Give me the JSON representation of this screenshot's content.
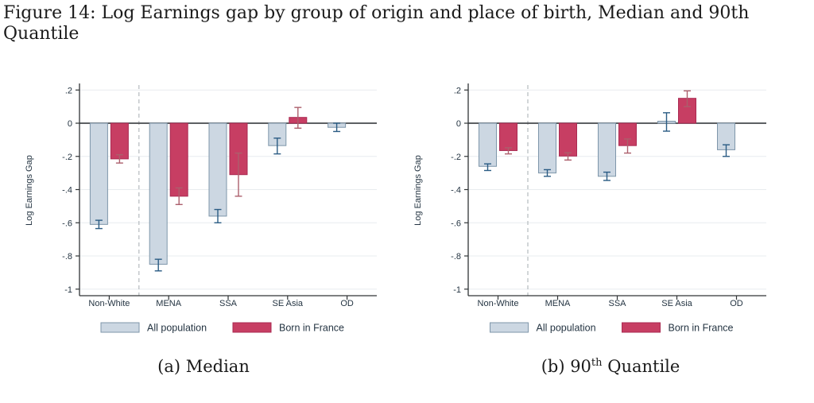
{
  "title": "Figure 14: Log Earnings gap by group of origin and place of birth, Median and 90th Quantile",
  "colors": {
    "background": "#ffffff",
    "grid": "#e8ecef",
    "dashed_separator": "#b5babe",
    "zero_line": "#46494d",
    "axis": "#303436",
    "chart_text": "#243442",
    "title_text": "#1b1b1b",
    "all_population_fill": "#ccd7e2",
    "all_population_stroke": "#7e96aa",
    "all_population_error": "#2b5c84",
    "born_in_france_fill": "#c73e63",
    "born_in_france_stroke": "#aa2a52",
    "born_in_france_error": "#ac5f6c"
  },
  "chart_data": [
    {
      "type": "bar",
      "title": "(a) Median",
      "caption": {
        "prefix": "(a) Median",
        "sup": "",
        "suffix": ""
      },
      "ylabel": "Log Earnings Gap",
      "xlabel": "",
      "ylim": [
        -1.05,
        0.25
      ],
      "grid": true,
      "legend_position": "bottom",
      "separator_after_category_index": 0,
      "categories": [
        "Non-White",
        "MENA",
        "SSA",
        "SE Asia",
        "OD"
      ],
      "yticks": [
        {
          "v": 0.2,
          "label": ".2"
        },
        {
          "v": 0,
          "label": "0"
        },
        {
          "v": -0.2,
          "label": "-.2"
        },
        {
          "v": -0.4,
          "label": "-.4"
        },
        {
          "v": -0.6,
          "label": "-.6"
        },
        {
          "v": -0.8,
          "label": "-.8"
        },
        {
          "v": -1,
          "label": "-1"
        }
      ],
      "series": [
        {
          "key": "all-population",
          "name": "All population",
          "fill": "#ccd7e2",
          "stroke": "#7e96aa",
          "error_color": "#2b5c84",
          "values": [
            -0.61,
            -0.85,
            -0.56,
            -0.135,
            -0.025
          ],
          "ci_low": [
            -0.635,
            -0.89,
            -0.6,
            -0.185,
            -0.05
          ],
          "ci_high": [
            -0.585,
            -0.82,
            -0.52,
            -0.09,
            0.0
          ]
        },
        {
          "key": "born-in-france",
          "name": "Born in France",
          "fill": "#c73e63",
          "stroke": "#aa2a52",
          "error_color": "#ac5f6c",
          "values": [
            -0.215,
            -0.44,
            -0.31,
            0.035,
            null
          ],
          "ci_low": [
            -0.24,
            -0.49,
            -0.44,
            -0.03,
            null
          ],
          "ci_high": [
            -0.19,
            -0.39,
            -0.18,
            0.095,
            null
          ]
        }
      ]
    },
    {
      "type": "bar",
      "title": "(b) 90th Quantile",
      "caption": {
        "prefix": "(b) 90",
        "sup": "th",
        "suffix": " Quantile"
      },
      "ylabel": "Log Earnings Gap",
      "xlabel": "",
      "ylim": [
        -1.05,
        0.25
      ],
      "grid": true,
      "legend_position": "bottom",
      "separator_after_category_index": 0,
      "categories": [
        "Non-White",
        "MENA",
        "SSA",
        "SE Asia",
        "OD"
      ],
      "yticks": [
        {
          "v": 0.2,
          "label": ".2"
        },
        {
          "v": 0,
          "label": "0"
        },
        {
          "v": -0.2,
          "label": "-.2"
        },
        {
          "v": -0.4,
          "label": "-.4"
        },
        {
          "v": -0.6,
          "label": "-.6"
        },
        {
          "v": -0.8,
          "label": "-.8"
        },
        {
          "v": -1,
          "label": "-1"
        }
      ],
      "series": [
        {
          "key": "all-population",
          "name": "All population",
          "fill": "#ccd7e2",
          "stroke": "#7e96aa",
          "error_color": "#2b5c84",
          "values": [
            -0.26,
            -0.3,
            -0.32,
            0.012,
            -0.16
          ],
          "ci_low": [
            -0.285,
            -0.32,
            -0.345,
            -0.048,
            -0.2
          ],
          "ci_high": [
            -0.245,
            -0.28,
            -0.295,
            0.063,
            -0.13
          ]
        },
        {
          "key": "born-in-france",
          "name": "Born in France",
          "fill": "#c73e63",
          "stroke": "#aa2a52",
          "error_color": "#ac5f6c",
          "values": [
            -0.165,
            -0.198,
            -0.135,
            0.15,
            null
          ],
          "ci_low": [
            -0.185,
            -0.222,
            -0.18,
            0.1,
            null
          ],
          "ci_high": [
            -0.148,
            -0.178,
            -0.095,
            0.195,
            null
          ]
        }
      ]
    }
  ]
}
